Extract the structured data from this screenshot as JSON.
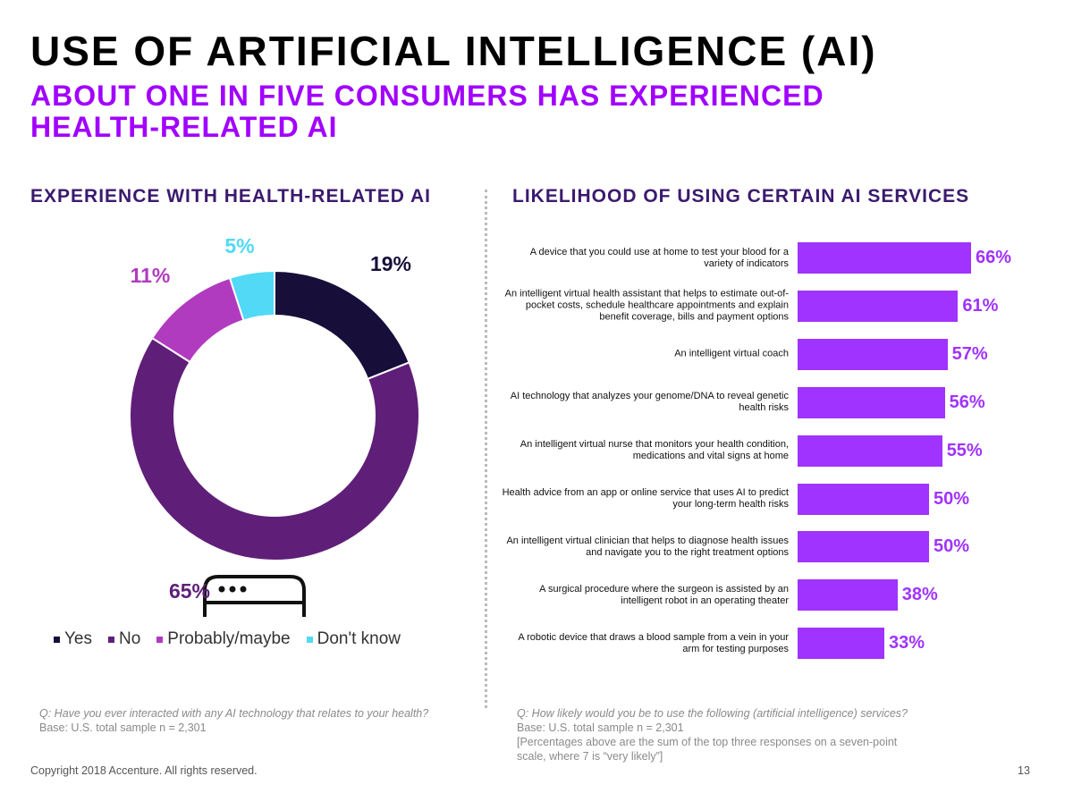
{
  "title": "USE OF ARTIFICIAL INTELLIGENCE (AI)",
  "subtitle": "ABOUT ONE IN FIVE CONSUMERS HAS EXPERIENCED HEALTH-RELATED AI",
  "chart_data": [
    {
      "type": "donut",
      "title": "EXPERIENCE WITH HEALTH-RELATED AI",
      "categories": [
        "Yes",
        "No",
        "Probably/maybe",
        "Don't know"
      ],
      "values": [
        19,
        65,
        11,
        5
      ],
      "value_labels": [
        "19%",
        "65%",
        "11%",
        "5%"
      ],
      "colors": [
        "#170f3a",
        "#5f1f78",
        "#b13bbf",
        "#52d9f5"
      ],
      "legend": "bottom",
      "notes": [
        "Q: Have you ever interacted with any AI technology that relates to your health?",
        "Base: U.S. total sample n = 2,301"
      ]
    },
    {
      "type": "bar",
      "orientation": "horizontal",
      "title": "LIKELIHOOD OF USING CERTAIN AI SERVICES",
      "categories": [
        "A device that you could use at home to test your blood for a variety of indicators",
        "An intelligent virtual health assistant that helps to estimate out-of-pocket costs, schedule healthcare appointments and explain benefit coverage, bills and payment options",
        "An intelligent virtual coach",
        "AI technology that analyzes your genome/DNA to reveal genetic health risks",
        "An intelligent virtual nurse that monitors your health condition, medications and vital signs at home",
        "Health advice from an app or online service that uses AI to predict your long-term health risks",
        "An intelligent virtual clinician that helps to diagnose health issues and navigate you to the right treatment options",
        "A surgical procedure where the surgeon is assisted by an intelligent robot in an operating theater",
        "A robotic device that draws a blood sample from a vein in your arm for testing purposes"
      ],
      "values": [
        66,
        61,
        57,
        56,
        55,
        50,
        50,
        38,
        33
      ],
      "value_labels": [
        "66%",
        "61%",
        "57%",
        "56%",
        "55%",
        "50%",
        "50%",
        "38%",
        "33%"
      ],
      "color": "#a033ff",
      "notes": [
        "Q: How likely would you be to use the following (artificial intelligence) services?",
        "Base: U.S. total sample n = 2,301",
        "[Percentages above are the sum of the top three responses on a seven-point scale, where 7 is “very likely”]"
      ]
    }
  ],
  "footer": {
    "copyright": "Copyright 2018 Accenture. All rights reserved.",
    "page": "13"
  }
}
